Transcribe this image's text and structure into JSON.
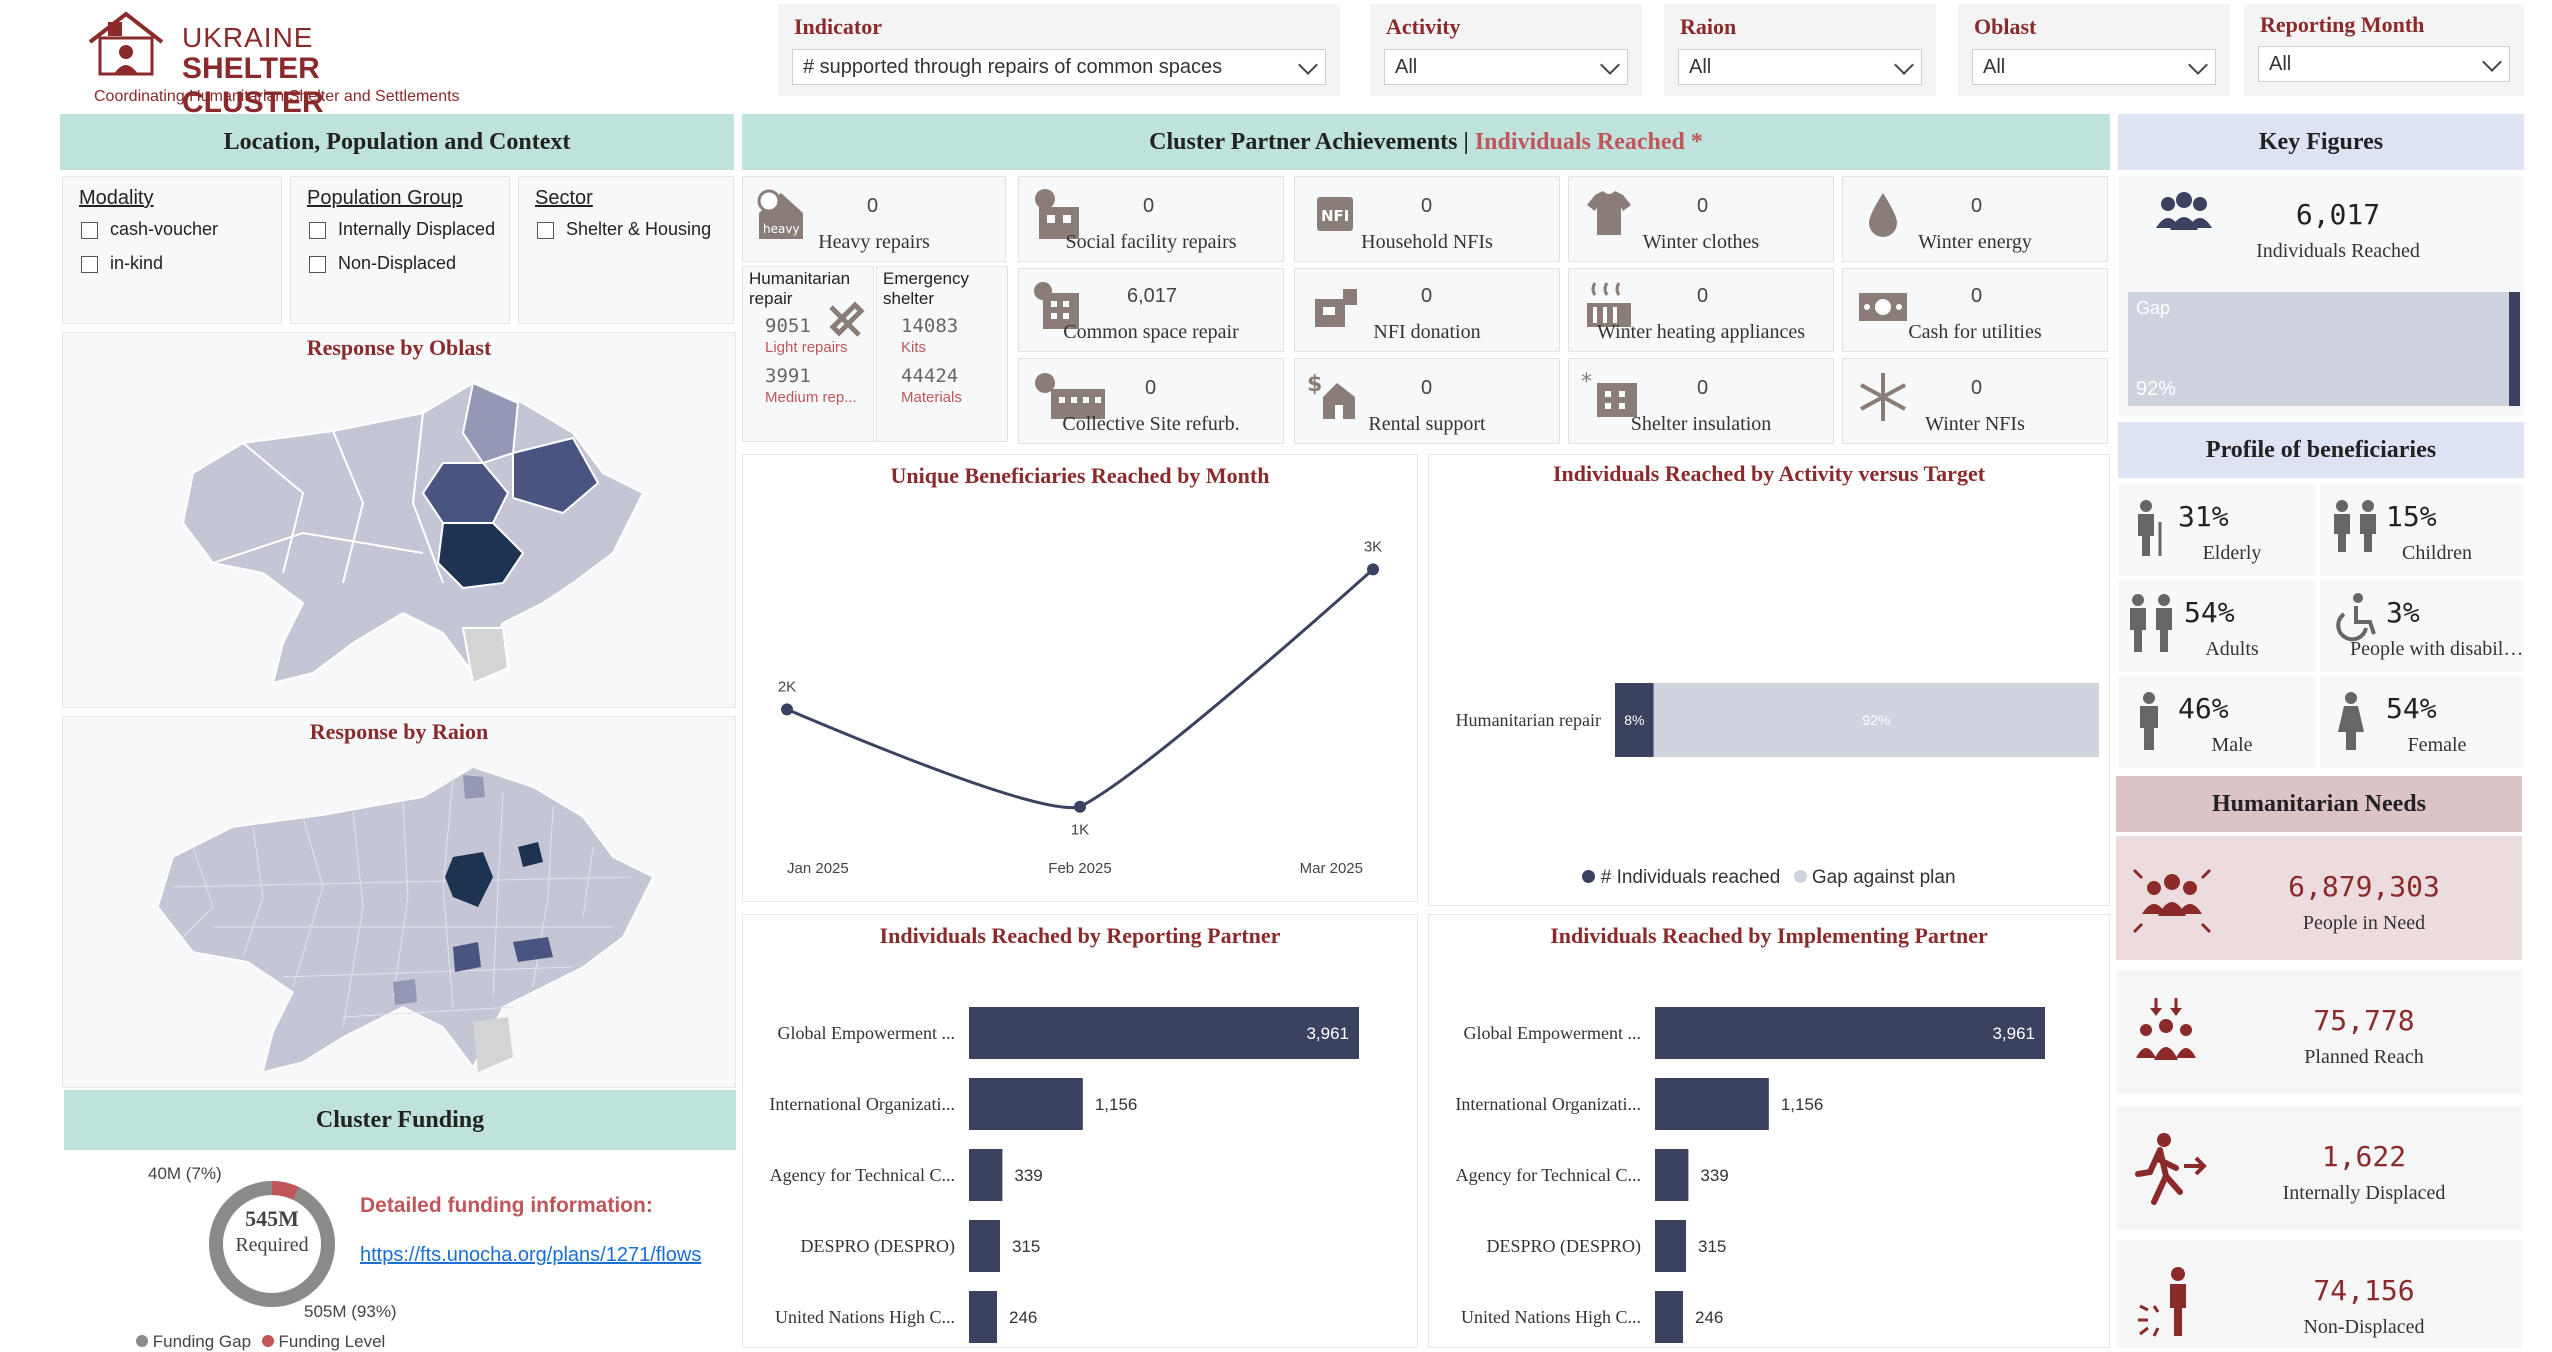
{
  "logo": {
    "line1": "UKRAINE",
    "line2": "SHELTER CLUSTER",
    "tagline": "Coordinating Humanitarian Shelter and Settlements"
  },
  "filters": [
    {
      "label": "Indicator",
      "value": "# supported through repairs of common spaces"
    },
    {
      "label": "Activity",
      "value": "All"
    },
    {
      "label": "Raion",
      "value": "All"
    },
    {
      "label": "Oblast",
      "value": "All"
    },
    {
      "label": "Reporting Month",
      "value": "All"
    }
  ],
  "location": {
    "title": "Location, Population and Context",
    "modality": {
      "title": "Modality",
      "options": [
        "cash-voucher",
        "in-kind"
      ]
    },
    "population": {
      "title": "Population Group",
      "options": [
        "Internally Displaced",
        "Non-Displaced"
      ]
    },
    "sector": {
      "title": "Sector",
      "options": [
        "Shelter & Housing"
      ]
    },
    "oblast_title": "Response by Oblast",
    "raion_title": "Response by Raion"
  },
  "funding": {
    "title": "Cluster Funding",
    "center_value": "545M",
    "center_label": "Required",
    "gap_label": "40M (7%)",
    "level_label": "505M (93%)",
    "info_title": "Detailed funding information:",
    "link": "https://fts.unocha.org/plans/1271/flows",
    "legend": [
      "Funding Gap",
      "Funding Level"
    ],
    "gap_fraction": 0.07
  },
  "achievements": {
    "title_a": "Cluster Partner Achievements |",
    "title_b": "Individuals Reached *",
    "tiles": [
      {
        "value": "0",
        "label": "Heavy repairs",
        "icon": "heavy-repairs-icon"
      },
      {
        "value": "0",
        "label": "Social facility repairs",
        "icon": "social-facility-icon"
      },
      {
        "value": "0",
        "label": "Household NFIs",
        "icon": "nfi-icon"
      },
      {
        "value": "0",
        "label": "Winter clothes",
        "icon": "shirt-icon"
      },
      {
        "value": "0",
        "label": "Winter energy",
        "icon": "drop-icon"
      },
      {
        "value": "6,017",
        "label": "Common space repair",
        "icon": "building-icon"
      },
      {
        "value": "0",
        "label": "NFI donation",
        "icon": "donation-icon"
      },
      {
        "value": "0",
        "label": "Winter heating appliances",
        "icon": "heater-icon"
      },
      {
        "value": "0",
        "label": "Cash for utilities",
        "icon": "cash-icon"
      },
      {
        "value": "0",
        "label": "Collective Site refurb.",
        "icon": "collective-site-icon"
      },
      {
        "value": "0",
        "label": "Rental support",
        "icon": "rental-icon"
      },
      {
        "value": "0",
        "label": "Shelter insulation",
        "icon": "insulation-icon"
      },
      {
        "value": "0",
        "label": "Winter NFIs",
        "icon": "snowflake-icon"
      }
    ],
    "hum_repair": {
      "title": "Humanitarian repair",
      "v1": "9051",
      "l1": "Light repairs",
      "v2": "3991",
      "l2": "Medium rep..."
    },
    "emergency": {
      "title": "Emergency shelter",
      "v1": "14083",
      "l1": "Kits",
      "v2": "44424",
      "l2": "Materials"
    }
  },
  "chart_data": [
    {
      "type": "line",
      "title": "Unique Beneficiaries Reached by Month",
      "categories": [
        "Jan 2025",
        "Feb 2025",
        "Mar 2025"
      ],
      "values": [
        1850,
        1050,
        3000
      ],
      "data_labels": [
        "2K",
        "1K",
        "3K"
      ]
    },
    {
      "type": "bar",
      "title": "Individuals Reached by Activity versus Target",
      "categories": [
        "Humanitarian repair"
      ],
      "series": [
        {
          "name": "# Individuals reached",
          "values": [
            8
          ],
          "labels": [
            "8%"
          ]
        },
        {
          "name": "Gap against plan",
          "values": [
            92
          ],
          "labels": [
            "92%"
          ]
        }
      ],
      "legend": "bottom"
    },
    {
      "type": "bar",
      "title": "Individuals Reached by Reporting Partner",
      "categories": [
        "Global Empowerment ...",
        "International Organizati...",
        "Agency for Technical C...",
        "DESPRO (DESPRO)",
        "United Nations High C..."
      ],
      "values": [
        3961,
        1156,
        339,
        315,
        246
      ],
      "labels": [
        "3,961",
        "1,156",
        "339",
        "315",
        "246"
      ]
    },
    {
      "type": "bar",
      "title": "Individuals Reached by Implementing Partner",
      "categories": [
        "Global Empowerment ...",
        "International Organizati...",
        "Agency for Technical C...",
        "DESPRO (DESPRO)",
        "United Nations High C..."
      ],
      "values": [
        3961,
        1156,
        339,
        315,
        246
      ],
      "labels": [
        "3,961",
        "1,156",
        "339",
        "315",
        "246"
      ]
    }
  ],
  "key_figures": {
    "title": "Key Figures",
    "value": "6,017",
    "label": "Individuals Reached",
    "gap_label": "Gap",
    "gap_pct": "92%",
    "reached_fraction": 0.08
  },
  "profile": {
    "title": "Profile of beneficiaries",
    "items": [
      {
        "value": "31%",
        "label": "Elderly",
        "icon": "elderly-icon"
      },
      {
        "value": "15%",
        "label": "Children",
        "icon": "children-icon"
      },
      {
        "value": "54%",
        "label": "Adults",
        "icon": "adults-icon"
      },
      {
        "value": "3%",
        "label": "People with disabilit...",
        "icon": "wheelchair-icon"
      },
      {
        "value": "46%",
        "label": "Male",
        "icon": "male-icon"
      },
      {
        "value": "54%",
        "label": "Female",
        "icon": "female-icon"
      }
    ]
  },
  "needs": {
    "title": "Humanitarian Needs",
    "items": [
      {
        "value": "6,879,303",
        "label": "People in Need",
        "icon": "people-in-need-icon"
      },
      {
        "value": "75,778",
        "label": "Planned Reach",
        "icon": "planned-reach-icon"
      },
      {
        "value": "1,622",
        "label": "Internally Displaced",
        "icon": "displaced-icon"
      },
      {
        "value": "74,156",
        "label": "Non-Displaced",
        "icon": "non-displaced-icon"
      }
    ]
  },
  "colors": {
    "brand": "#8b2a2a",
    "navy": "#3b4260",
    "teal_header": "#bfe3dc",
    "gap": "#cfd3de"
  }
}
